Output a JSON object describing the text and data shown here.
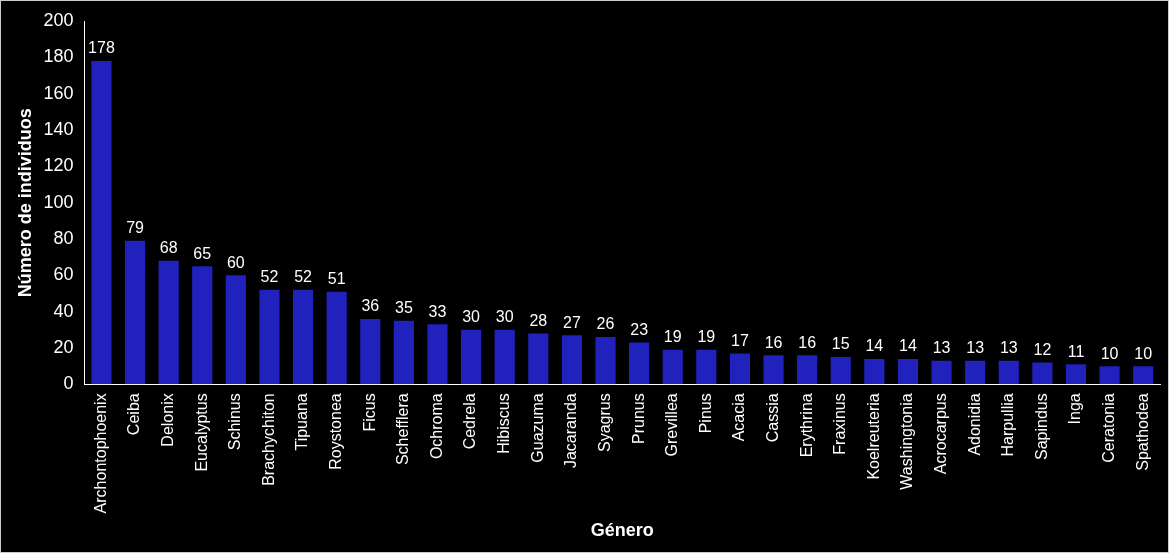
{
  "chart_data": {
    "type": "bar",
    "xlabel": "Género",
    "ylabel": "Número de individuos",
    "categories": [
      "Archontophoenix",
      "Ceiba",
      "Delonix",
      "Eucalyptus",
      "Schinus",
      "Brachychiton",
      "Tipuana",
      "Roystonea",
      "Ficus",
      "Schefflera",
      "Ochroma",
      "Cedrela",
      "Hibiscus",
      "Guazuma",
      "Jacaranda",
      "Syagrus",
      "Prunus",
      "Grevillea",
      "Pinus",
      "Acacia",
      "Cassia",
      "Erythrina",
      "Fraxinus",
      "Koelreuteria",
      "Washingtonia",
      "Acrocarpus",
      "Adonidia",
      "Harpullia",
      "Sapindus",
      "Inga",
      "Ceratonia",
      "Spathodea"
    ],
    "values": [
      178,
      79,
      68,
      65,
      60,
      52,
      52,
      51,
      36,
      35,
      33,
      30,
      30,
      28,
      27,
      26,
      23,
      19,
      19,
      17,
      16,
      16,
      15,
      14,
      14,
      13,
      13,
      13,
      12,
      11,
      10,
      10
    ],
    "color": "#2121bd",
    "ylim": [
      0,
      200
    ],
    "yticks": [
      0,
      20,
      40,
      60,
      80,
      100,
      120,
      140,
      160,
      180,
      200
    ],
    "grid": false,
    "legend": false,
    "data_labels": true
  }
}
